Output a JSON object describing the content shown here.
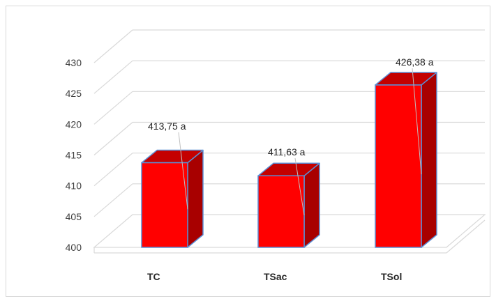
{
  "chart_data": {
    "type": "bar",
    "style": "3d-column",
    "categories": [
      "TC",
      "TSac",
      "TSol"
    ],
    "values": [
      413.75,
      411.63,
      426.38
    ],
    "data_labels": [
      "413,75  a",
      "411,63  a",
      "426,38  a"
    ],
    "yticks": [
      "400",
      "405",
      "410",
      "415",
      "420",
      "425",
      "430"
    ],
    "ylim": [
      400,
      430
    ],
    "grid": true,
    "legend": "none",
    "title": "",
    "xlabel": "",
    "ylabel": "",
    "colors": {
      "bar_front": "#ff0000",
      "bar_side": "#a80000",
      "bar_top": "#c40000",
      "bar_edge": "#5b8fd6",
      "grid": "#d9d9d9",
      "axis_text": "#404040"
    }
  }
}
